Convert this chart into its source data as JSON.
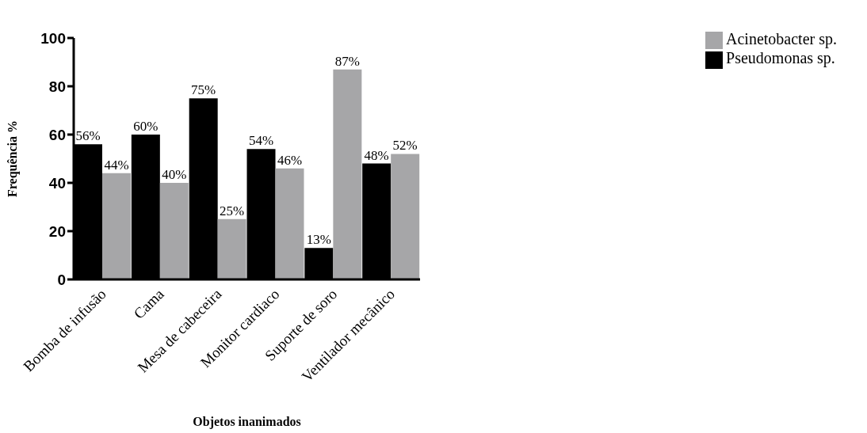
{
  "chart_data": {
    "type": "bar",
    "xlabel": "Objetos inanimados",
    "ylabel": "Frequência %",
    "categories": [
      "Bomba de infusão",
      "Cama",
      "Mesa de cabeceira",
      "Monitor cardiaco",
      "Suporte de soro",
      "Ventilador mecânico"
    ],
    "series": [
      {
        "name": "Pseudomonas sp.",
        "color": "#000000",
        "values": [
          56,
          60,
          75,
          54,
          13,
          48
        ],
        "value_labels": [
          "56%",
          "60%",
          "75%",
          "54%",
          "13%",
          "48%"
        ]
      },
      {
        "name": "Acinetobacter sp.",
        "color": "#a6a6a8",
        "values": [
          44,
          40,
          25,
          46,
          87,
          52
        ],
        "value_labels": [
          "44%",
          "40%",
          "25%",
          "46%",
          "87%",
          "52%"
        ]
      }
    ],
    "ylim": [
      0,
      100
    ],
    "yticks": [
      0,
      20,
      40,
      60,
      80,
      100
    ],
    "grid": false,
    "legend": "top right"
  }
}
